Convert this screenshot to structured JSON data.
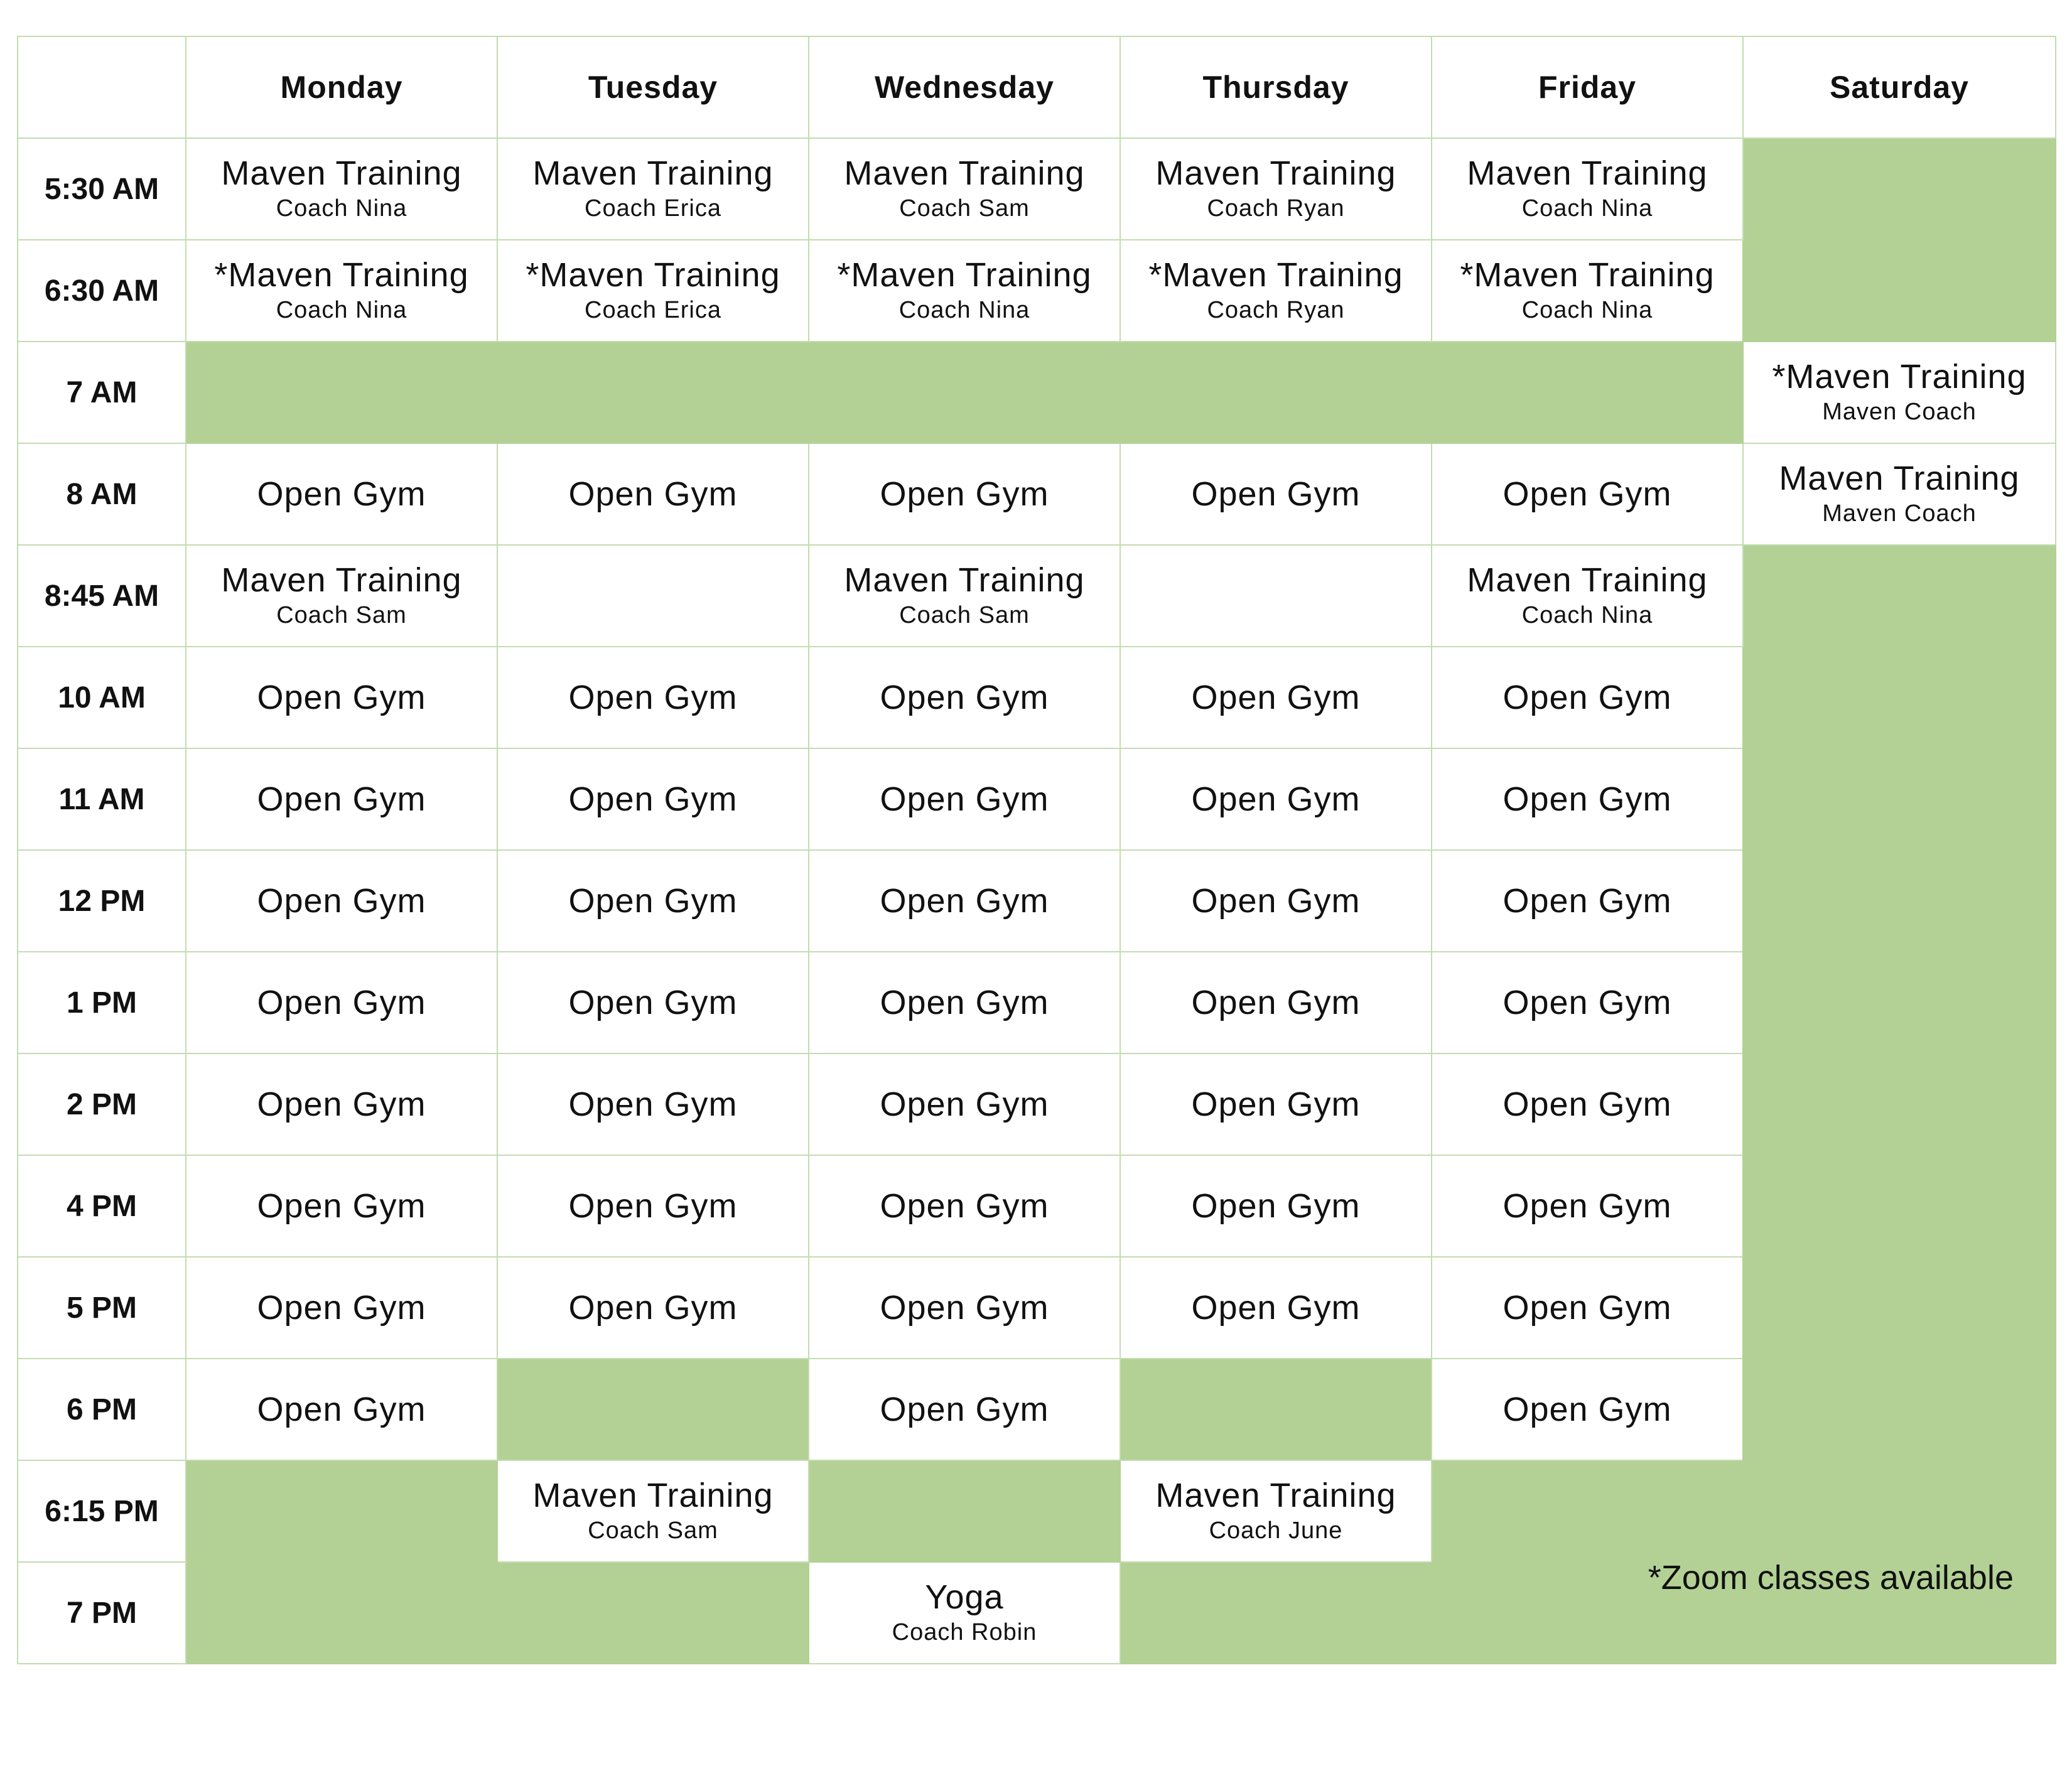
{
  "header": {
    "corner": "",
    "days": [
      "Monday",
      "Tuesday",
      "Wednesday",
      "Thursday",
      "Friday",
      "Saturday"
    ]
  },
  "times": [
    "5:30 AM",
    "6:30 AM",
    "7 AM",
    "8 AM",
    "8:45 AM",
    "10 AM",
    "11 AM",
    "12 PM",
    "1 PM",
    "2 PM",
    "4 PM",
    "5 PM",
    "6 PM",
    "6:15 PM",
    "7 PM"
  ],
  "classes": {
    "maven": "Maven Training",
    "maven_zoom": "*Maven Training",
    "open_gym": "Open Gym",
    "yoga": "Yoga"
  },
  "coaches": {
    "nina": "Coach Nina",
    "erica": "Coach Erica",
    "sam": "Coach Sam",
    "ryan": "Coach Ryan",
    "june": "Coach June",
    "robin": "Coach Robin",
    "maven": "Maven Coach"
  },
  "footnote": "*Zoom classes available",
  "colors": {
    "closed_fill": "#b3d194",
    "grid_line": "#c3dcb0",
    "open_fill": "#ffffff"
  }
}
